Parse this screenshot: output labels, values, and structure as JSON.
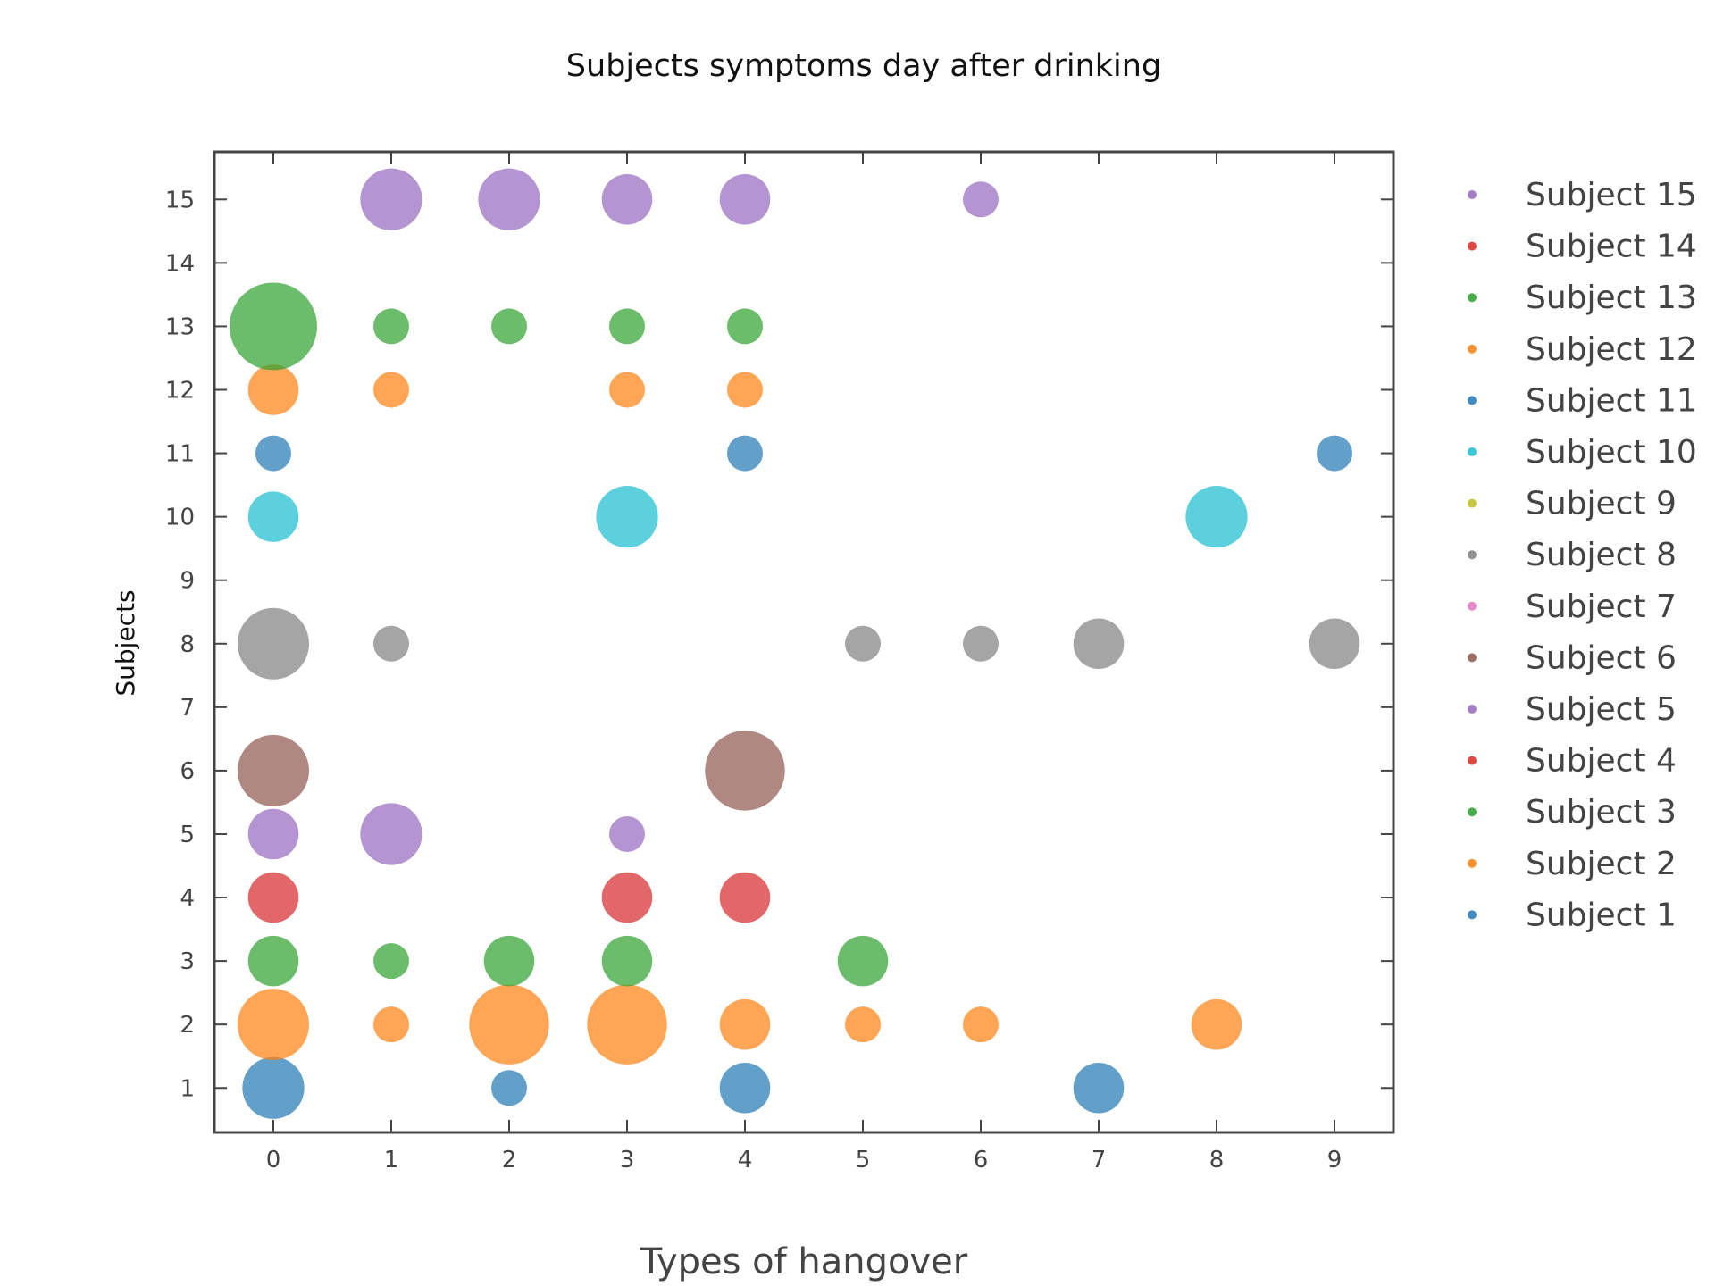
{
  "chart_data": {
    "type": "scatter",
    "title": "Subjects symptoms day after drinking",
    "xlabel": "Types of hangover",
    "ylabel": "Subjects",
    "xlim": [
      -0.5,
      9.5
    ],
    "ylim": [
      0.3,
      15.75
    ],
    "x_ticks": [
      0,
      1,
      2,
      3,
      4,
      5,
      6,
      7,
      8,
      9
    ],
    "y_ticks": [
      1,
      2,
      3,
      4,
      5,
      6,
      7,
      8,
      9,
      10,
      11,
      12,
      13,
      14,
      15
    ],
    "grid": false,
    "legend_position": "right",
    "series": [
      {
        "name": "Subject 1",
        "color": "#1f77b4",
        "points": [
          {
            "x": 0,
            "y": 1,
            "size": 3
          },
          {
            "x": 2,
            "y": 1,
            "size": 1
          },
          {
            "x": 4,
            "y": 1,
            "size": 2
          },
          {
            "x": 7,
            "y": 1,
            "size": 2
          }
        ]
      },
      {
        "name": "Subject 2",
        "color": "#ff7f0e",
        "points": [
          {
            "x": 0,
            "y": 2,
            "size": 4
          },
          {
            "x": 1,
            "y": 2,
            "size": 1
          },
          {
            "x": 2,
            "y": 2,
            "size": 5
          },
          {
            "x": 3,
            "y": 2,
            "size": 5
          },
          {
            "x": 4,
            "y": 2,
            "size": 2
          },
          {
            "x": 5,
            "y": 2,
            "size": 1
          },
          {
            "x": 6,
            "y": 2,
            "size": 1
          },
          {
            "x": 8,
            "y": 2,
            "size": 2
          }
        ]
      },
      {
        "name": "Subject 3",
        "color": "#2ca02c",
        "points": [
          {
            "x": 0,
            "y": 3,
            "size": 2
          },
          {
            "x": 1,
            "y": 3,
            "size": 1
          },
          {
            "x": 2,
            "y": 3,
            "size": 2
          },
          {
            "x": 3,
            "y": 3,
            "size": 2
          },
          {
            "x": 5,
            "y": 3,
            "size": 2
          }
        ]
      },
      {
        "name": "Subject 4",
        "color": "#d62728",
        "points": [
          {
            "x": 0,
            "y": 4,
            "size": 2
          },
          {
            "x": 3,
            "y": 4,
            "size": 2
          },
          {
            "x": 4,
            "y": 4,
            "size": 2
          }
        ]
      },
      {
        "name": "Subject 5",
        "color": "#9467bd",
        "points": [
          {
            "x": 0,
            "y": 5,
            "size": 2
          },
          {
            "x": 1,
            "y": 5,
            "size": 3
          },
          {
            "x": 3,
            "y": 5,
            "size": 1
          }
        ]
      },
      {
        "name": "Subject 6",
        "color": "#8c564b",
        "points": [
          {
            "x": 0,
            "y": 6,
            "size": 4
          },
          {
            "x": 4,
            "y": 6,
            "size": 5
          }
        ]
      },
      {
        "name": "Subject 7",
        "color": "#e377c2",
        "points": []
      },
      {
        "name": "Subject 8",
        "color": "#7f7f7f",
        "points": [
          {
            "x": 0,
            "y": 8,
            "size": 4
          },
          {
            "x": 1,
            "y": 8,
            "size": 1
          },
          {
            "x": 5,
            "y": 8,
            "size": 1
          },
          {
            "x": 6,
            "y": 8,
            "size": 1
          },
          {
            "x": 7,
            "y": 8,
            "size": 2
          },
          {
            "x": 9,
            "y": 8,
            "size": 2
          }
        ]
      },
      {
        "name": "Subject 9",
        "color": "#bcbd22",
        "points": []
      },
      {
        "name": "Subject 10",
        "color": "#17becf",
        "points": [
          {
            "x": 0,
            "y": 10,
            "size": 2
          },
          {
            "x": 3,
            "y": 10,
            "size": 3
          },
          {
            "x": 8,
            "y": 10,
            "size": 3
          }
        ]
      },
      {
        "name": "Subject 11",
        "color": "#1f77b4",
        "points": [
          {
            "x": 0,
            "y": 11,
            "size": 1
          },
          {
            "x": 4,
            "y": 11,
            "size": 1
          },
          {
            "x": 9,
            "y": 11,
            "size": 1
          }
        ]
      },
      {
        "name": "Subject 12",
        "color": "#ff7f0e",
        "points": [
          {
            "x": 0,
            "y": 12,
            "size": 2
          },
          {
            "x": 1,
            "y": 12,
            "size": 1
          },
          {
            "x": 3,
            "y": 12,
            "size": 1
          },
          {
            "x": 4,
            "y": 12,
            "size": 1
          }
        ]
      },
      {
        "name": "Subject 13",
        "color": "#2ca02c",
        "points": [
          {
            "x": 0,
            "y": 13,
            "size": 6
          },
          {
            "x": 1,
            "y": 13,
            "size": 1
          },
          {
            "x": 2,
            "y": 13,
            "size": 1
          },
          {
            "x": 3,
            "y": 13,
            "size": 1
          },
          {
            "x": 4,
            "y": 13,
            "size": 1
          }
        ]
      },
      {
        "name": "Subject 14",
        "color": "#d62728",
        "points": []
      },
      {
        "name": "Subject 15",
        "color": "#9467bd",
        "points": [
          {
            "x": 1,
            "y": 15,
            "size": 3
          },
          {
            "x": 2,
            "y": 15,
            "size": 3
          },
          {
            "x": 3,
            "y": 15,
            "size": 2
          },
          {
            "x": 4,
            "y": 15,
            "size": 2
          },
          {
            "x": 6,
            "y": 15,
            "size": 1
          }
        ]
      }
    ]
  }
}
